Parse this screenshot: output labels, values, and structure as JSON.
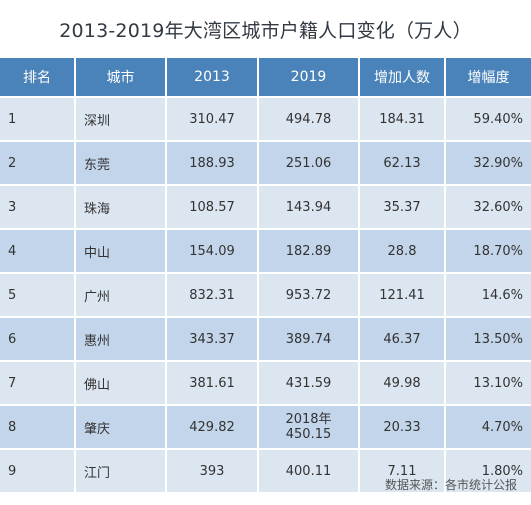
{
  "title": "2013-2019年大湾区城市户籍人口变化（万人）",
  "headers": [
    "排名",
    "城市",
    "2013",
    "2019",
    "增加人数",
    "增幅度"
  ],
  "rows": [
    {
      "rank": "1",
      "city": "深圳",
      "y2013": "310.47",
      "y2019": "494.78",
      "increase": "184.31",
      "growth": "59.40%"
    },
    {
      "rank": "2",
      "city": "东莞",
      "y2013": "188.93",
      "y2019": "251.06",
      "increase": "62.13",
      "growth": "32.90%"
    },
    {
      "rank": "3",
      "city": "珠海",
      "y2013": "108.57",
      "y2019": "143.94",
      "increase": "35.37",
      "growth": "32.60%"
    },
    {
      "rank": "4",
      "city": "中山",
      "y2013": "154.09",
      "y2019": "182.89",
      "increase": "28.8",
      "growth": "18.70%"
    },
    {
      "rank": "5",
      "city": "广州",
      "y2013": "832.31",
      "y2019": "953.72",
      "increase": "121.41",
      "growth": "14.6%"
    },
    {
      "rank": "6",
      "city": "惠州",
      "y2013": "343.37",
      "y2019": "389.74",
      "increase": "46.37",
      "growth": "13.50%"
    },
    {
      "rank": "7",
      "city": "佛山",
      "y2013": "381.61",
      "y2019": "431.59",
      "increase": "49.98",
      "growth": "13.10%"
    },
    {
      "rank": "8",
      "city": "肇庆",
      "y2013": "429.82",
      "y2019_note": "2018年",
      "y2019": "450.15",
      "increase": "20.33",
      "growth": "4.70%"
    },
    {
      "rank": "9",
      "city": "江门",
      "y2013": "393",
      "y2019": "400.11",
      "increase": "7.11",
      "growth": "1.80%"
    }
  ],
  "source": "数据来源：各市统计公报",
  "colors": {
    "header_bg": "#4a83b9",
    "row_light": "#dce6f1",
    "row_dark": "#c3d5ea"
  }
}
